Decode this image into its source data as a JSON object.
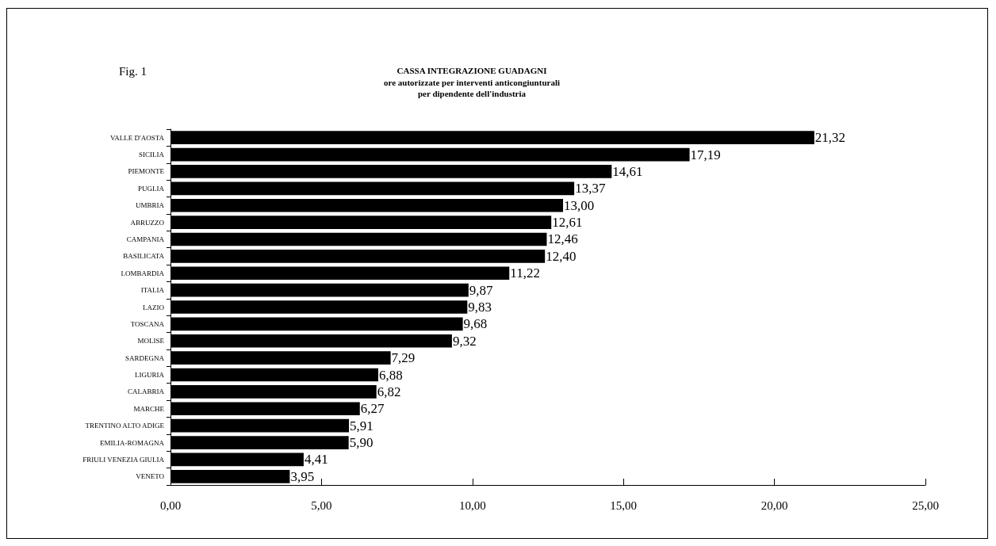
{
  "chart_data": {
    "type": "bar",
    "orientation": "horizontal",
    "title": "CASSA INTEGRAZIONE GUADAGNI",
    "subtitle": "ore autorizzate per interventi anticongiunturali\nper dipendente dell'industria",
    "annotations": [
      "Fig. 1"
    ],
    "categories": [
      "VALLE D'AOSTA",
      "SICILIA",
      "PIEMONTE",
      "PUGLIA",
      "UMBRIA",
      "ABRUZZO",
      "CAMPANIA",
      "BASILICATA",
      "LOMBARDIA",
      "ITALIA",
      "LAZIO",
      "TOSCANA",
      "MOLISE",
      "SARDEGNA",
      "LIGURIA",
      "CALABRIA",
      "MARCHE",
      "TRENTINO ALTO ADIGE",
      "EMILIA-ROMAGNA",
      "FRIULI VENEZIA GIULIA",
      "VENETO"
    ],
    "values": [
      21.32,
      17.19,
      14.61,
      13.37,
      13.0,
      12.61,
      12.46,
      12.4,
      11.22,
      9.87,
      9.83,
      9.68,
      9.32,
      7.29,
      6.88,
      6.82,
      6.27,
      5.91,
      5.9,
      4.41,
      3.95
    ],
    "value_labels": [
      "21,32",
      "17,19",
      "14,61",
      "13,37",
      "13,00",
      "12,61",
      "12,46",
      "12,40",
      "11,22",
      "9,87",
      "9,83",
      "9,68",
      "9,32",
      "7,29",
      "6,88",
      "6,82",
      "6,27",
      "5,91",
      "5,90",
      "4,41",
      "3,95"
    ],
    "color": "#000000",
    "xlim": [
      0,
      25
    ],
    "xticks": [
      {
        "value": 0,
        "label": "0,00"
      },
      {
        "value": 5,
        "label": "5,00"
      },
      {
        "value": 10,
        "label": "10,00"
      },
      {
        "value": 15,
        "label": "15,00"
      },
      {
        "value": 20,
        "label": "20,00"
      },
      {
        "value": 25,
        "label": "25,00"
      }
    ],
    "grid": false
  }
}
